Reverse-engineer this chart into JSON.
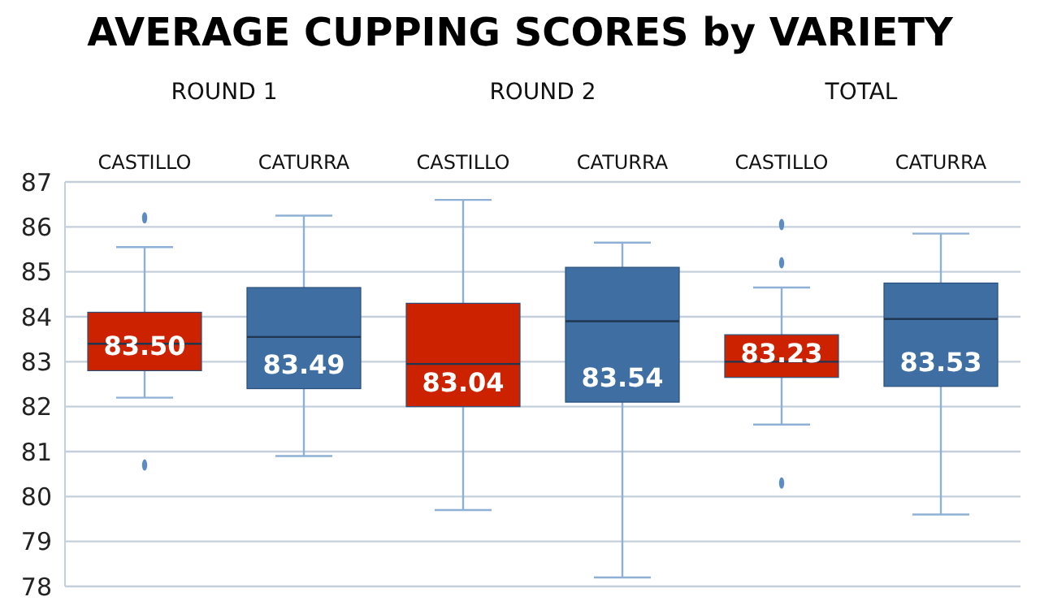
{
  "chart_data": {
    "type": "box",
    "title": "AVERAGE CUPPING SCORES by VARIETY",
    "categories": [
      "CASTILLO",
      "CATURRA",
      "CASTILLO",
      "CATURRA",
      "CASTILLO",
      "CATURRA"
    ],
    "colors": [
      "#cc2200",
      "#3e6ea2",
      "#cc2200",
      "#3e6ea2",
      "#cc2200",
      "#3e6ea2"
    ],
    "boxes": [
      {
        "low": 82.2,
        "q1": 82.8,
        "median": 83.4,
        "q3": 84.1,
        "high": 85.55,
        "outliers": [
          86.2,
          80.7
        ]
      },
      {
        "low": 80.9,
        "q1": 82.4,
        "median": 83.55,
        "q3": 84.65,
        "high": 86.25
      },
      {
        "low": 79.7,
        "q1": 82.0,
        "median": 82.95,
        "q3": 84.3,
        "high": 86.6
      },
      {
        "low": 78.2,
        "q1": 82.1,
        "median": 83.9,
        "q3": 85.1,
        "high": 85.65
      },
      {
        "low": 81.6,
        "q1": 82.65,
        "median": 83.0,
        "q3": 83.6,
        "high": 84.65,
        "outliers": [
          86.05,
          85.2,
          80.3
        ]
      },
      {
        "low": 79.6,
        "q1": 82.45,
        "median": 83.95,
        "q3": 84.75,
        "high": 85.85
      }
    ],
    "value_labels": [
      "83.50",
      "83.49",
      "83.04",
      "83.54",
      "83.23",
      "83.53"
    ],
    "annotations": [
      "ROUND 1",
      "ROUND 2",
      "TOTAL"
    ],
    "ylim": [
      78,
      87
    ],
    "yticks": [
      78,
      79,
      80,
      81,
      82,
      83,
      84,
      85,
      86,
      87
    ],
    "grid": "y"
  }
}
